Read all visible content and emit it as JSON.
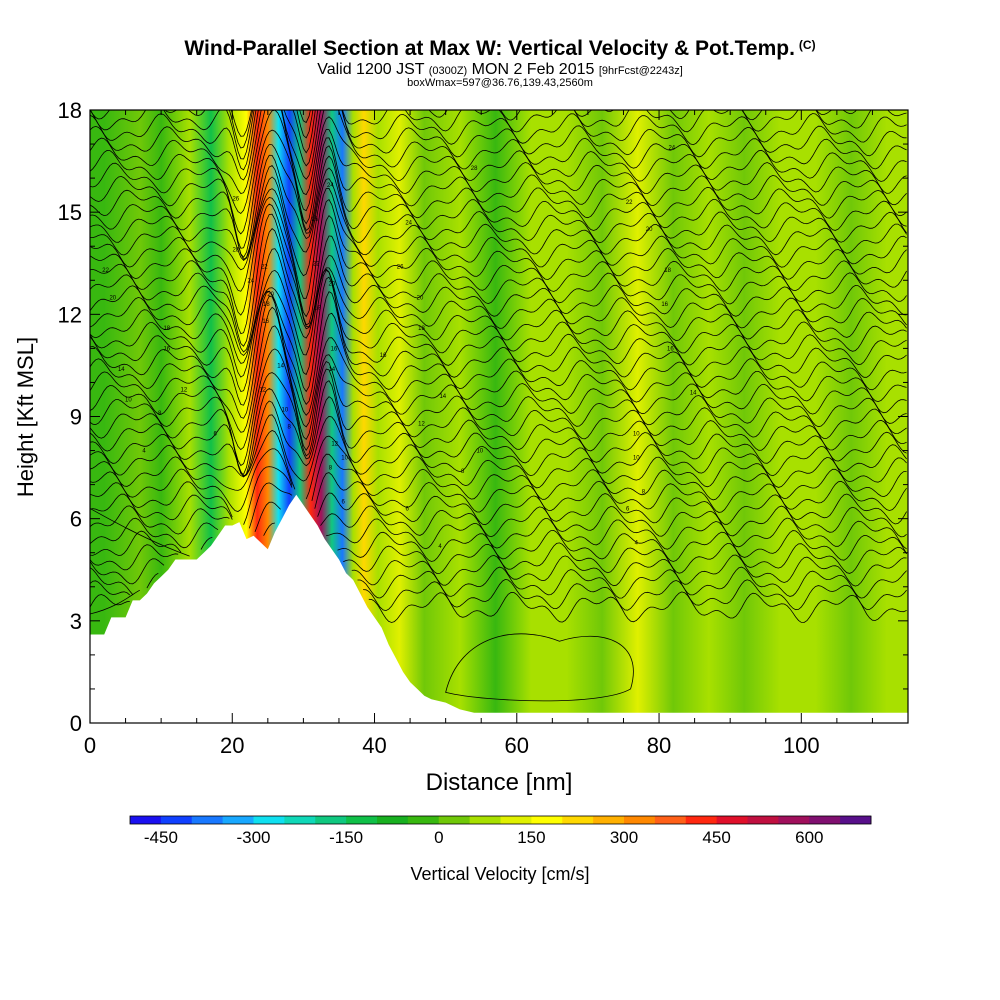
{
  "title": {
    "main": "Wind-Parallel Section at Max W: Vertical Velocity & Pot.Temp.",
    "copyright": "(C)",
    "valid_prefix": "Valid 1200 JST",
    "valid_utc": "(0300Z)",
    "valid_date": "MON 2 Feb 2015",
    "forecast": "[9hrFcst@2243z]",
    "boxwmax": "boxWmax=597@36.76,139.43,2560m"
  },
  "chart_data": {
    "type": "heatmap",
    "xlabel": "Distance [nm]",
    "ylabel": "Height [Kft MSL]",
    "xlim": [
      0,
      115
    ],
    "ylim": [
      0,
      18
    ],
    "x_ticks": [
      0,
      20,
      40,
      60,
      80,
      100
    ],
    "y_ticks": [
      0,
      3,
      6,
      9,
      12,
      15,
      18
    ],
    "terrain_kft": [
      [
        0,
        2.6
      ],
      [
        2,
        2.6
      ],
      [
        3,
        3.1
      ],
      [
        5,
        3.1
      ],
      [
        6,
        3.6
      ],
      [
        7,
        3.6
      ],
      [
        8,
        3.8
      ],
      [
        9,
        4.1
      ],
      [
        10,
        4.3
      ],
      [
        11,
        4.5
      ],
      [
        12,
        4.8
      ],
      [
        15,
        4.8
      ],
      [
        16,
        5.0
      ],
      [
        17,
        5.2
      ],
      [
        18,
        5.5
      ],
      [
        19,
        5.8
      ],
      [
        20,
        5.8
      ],
      [
        21,
        5.9
      ],
      [
        22,
        5.4
      ],
      [
        23,
        5.5
      ],
      [
        24,
        5.3
      ],
      [
        25,
        5.1
      ],
      [
        26,
        5.6
      ],
      [
        27,
        6.0
      ],
      [
        28,
        6.4
      ],
      [
        29,
        6.7
      ],
      [
        30,
        6.4
      ],
      [
        31,
        6.1
      ],
      [
        32,
        5.8
      ],
      [
        33,
        5.4
      ],
      [
        34,
        5.1
      ],
      [
        35,
        4.8
      ],
      [
        36,
        4.4
      ],
      [
        37,
        4.2
      ],
      [
        38,
        3.8
      ],
      [
        39,
        3.4
      ],
      [
        40,
        3.1
      ],
      [
        41,
        2.8
      ],
      [
        42,
        2.3
      ],
      [
        43,
        1.9
      ],
      [
        44,
        1.5
      ],
      [
        45,
        1.2
      ],
      [
        46,
        1.0
      ],
      [
        47,
        0.8
      ],
      [
        48,
        0.7
      ],
      [
        50,
        0.6
      ],
      [
        52,
        0.4
      ],
      [
        54,
        0.3
      ],
      [
        56,
        0.3
      ],
      [
        115,
        0.3
      ]
    ],
    "vertical_velocity_bands_cms": [
      {
        "x": 2,
        "w": -20
      },
      {
        "x": 7,
        "w": 30
      },
      {
        "x": 10,
        "w": -50
      },
      {
        "x": 14,
        "w": 80
      },
      {
        "x": 17,
        "w": -130
      },
      {
        "x": 19.5,
        "w": 60
      },
      {
        "x": 22,
        "w": 170
      },
      {
        "x": 23.5,
        "w": 420
      },
      {
        "x": 25,
        "w": 300
      },
      {
        "x": 26.5,
        "w": -300
      },
      {
        "x": 28,
        "w": -420
      },
      {
        "x": 29.5,
        "w": -180
      },
      {
        "x": 31,
        "w": 420
      },
      {
        "x": 32.5,
        "w": 597
      },
      {
        "x": 34,
        "w": -200
      },
      {
        "x": 35.5,
        "w": -380
      },
      {
        "x": 37,
        "w": 90
      },
      {
        "x": 38.5,
        "w": 200
      },
      {
        "x": 40.5,
        "w": 60
      },
      {
        "x": 43.5,
        "w": 120
      },
      {
        "x": 47,
        "w": 40
      },
      {
        "x": 52,
        "w": 80
      },
      {
        "x": 57,
        "w": -20
      },
      {
        "x": 62,
        "w": 60
      },
      {
        "x": 67,
        "w": 80
      },
      {
        "x": 72,
        "w": 40
      },
      {
        "x": 77,
        "w": 100
      },
      {
        "x": 82,
        "w": 40
      },
      {
        "x": 87,
        "w": 90
      },
      {
        "x": 92,
        "w": 30
      },
      {
        "x": 97,
        "w": 60
      },
      {
        "x": 102,
        "w": 90
      },
      {
        "x": 107,
        "w": 40
      },
      {
        "x": 112,
        "w": 60
      }
    ],
    "potential_temperature_contour_labels": [
      {
        "label": "22",
        "x": 2.2,
        "y": 13.3
      },
      {
        "label": "20",
        "x": 3.2,
        "y": 12.5
      },
      {
        "label": "18",
        "x": 10.8,
        "y": 11.6
      },
      {
        "label": "16",
        "x": 10.8,
        "y": 11.0
      },
      {
        "label": "14",
        "x": 4.4,
        "y": 10.4
      },
      {
        "label": "12",
        "x": 13.2,
        "y": 9.8
      },
      {
        "label": "10",
        "x": 5.4,
        "y": 9.5
      },
      {
        "label": "8",
        "x": 9.8,
        "y": 9.1
      },
      {
        "label": "6",
        "x": 17.6,
        "y": 8.5
      },
      {
        "label": "4",
        "x": 7.6,
        "y": 8.0
      },
      {
        "label": "26",
        "x": 20.5,
        "y": 15.4
      },
      {
        "label": "28",
        "x": 20.5,
        "y": 13.9
      },
      {
        "label": "24",
        "x": 22.6,
        "y": 13.0
      },
      {
        "label": "22",
        "x": 24.5,
        "y": 13.4
      },
      {
        "label": "20",
        "x": 25.4,
        "y": 12.6
      },
      {
        "label": "18",
        "x": 24.8,
        "y": 12.3
      },
      {
        "label": "16",
        "x": 24.7,
        "y": 11.8
      },
      {
        "label": "14",
        "x": 26.8,
        "y": 10.5
      },
      {
        "label": "12",
        "x": 24.3,
        "y": 9.8
      },
      {
        "label": "10",
        "x": 27.4,
        "y": 9.2
      },
      {
        "label": "8",
        "x": 28.0,
        "y": 8.7
      },
      {
        "label": "24",
        "x": 33.8,
        "y": 15.8
      },
      {
        "label": "26",
        "x": 31.6,
        "y": 14.8
      },
      {
        "label": "22",
        "x": 31.8,
        "y": 13.5
      },
      {
        "label": "20",
        "x": 34.0,
        "y": 12.9
      },
      {
        "label": "18",
        "x": 32.0,
        "y": 12.2
      },
      {
        "label": "16",
        "x": 34.3,
        "y": 11.0
      },
      {
        "label": "14",
        "x": 34.0,
        "y": 10.4
      },
      {
        "label": "12",
        "x": 34.4,
        "y": 8.2
      },
      {
        "label": "10",
        "x": 35.8,
        "y": 7.8
      },
      {
        "label": "8",
        "x": 33.8,
        "y": 7.5
      },
      {
        "label": "6",
        "x": 35.6,
        "y": 6.5
      },
      {
        "label": "24",
        "x": 44.8,
        "y": 14.7
      },
      {
        "label": "26",
        "x": 43.6,
        "y": 13.4
      },
      {
        "label": "20",
        "x": 46.4,
        "y": 12.5
      },
      {
        "label": "18",
        "x": 46.6,
        "y": 11.6
      },
      {
        "label": "16",
        "x": 41.2,
        "y": 10.8
      },
      {
        "label": "14",
        "x": 49.6,
        "y": 9.6
      },
      {
        "label": "12",
        "x": 46.6,
        "y": 8.8
      },
      {
        "label": "10",
        "x": 54.8,
        "y": 8.0
      },
      {
        "label": "8",
        "x": 52.4,
        "y": 7.4
      },
      {
        "label": "6",
        "x": 44.6,
        "y": 6.3
      },
      {
        "label": "4",
        "x": 49.2,
        "y": 5.2
      },
      {
        "label": "28",
        "x": 54.0,
        "y": 16.3
      },
      {
        "label": "24",
        "x": 81.8,
        "y": 16.9
      },
      {
        "label": "22",
        "x": 75.8,
        "y": 15.3
      },
      {
        "label": "20",
        "x": 78.6,
        "y": 14.5
      },
      {
        "label": "18",
        "x": 81.2,
        "y": 13.3
      },
      {
        "label": "16",
        "x": 80.8,
        "y": 12.3
      },
      {
        "label": "16",
        "x": 81.6,
        "y": 11.0
      },
      {
        "label": "14",
        "x": 84.8,
        "y": 9.7
      },
      {
        "label": "10",
        "x": 76.8,
        "y": 8.5
      },
      {
        "label": "10",
        "x": 76.8,
        "y": 7.8
      },
      {
        "label": "8",
        "x": 77.8,
        "y": 6.8
      },
      {
        "label": "6",
        "x": 75.6,
        "y": 6.3
      },
      {
        "label": "4",
        "x": 76.8,
        "y": 5.3
      }
    ]
  },
  "colorbar": {
    "label": "Vertical Velocity [cm/s]",
    "tick_values": [
      -450,
      -300,
      -150,
      0,
      150,
      300,
      450,
      600
    ],
    "tick_labels": [
      "-450",
      "-300",
      "-150",
      "0",
      "150",
      "300",
      "450",
      "600"
    ],
    "range": [
      -500,
      700
    ],
    "colors": [
      "#1a10f0",
      "#1040ff",
      "#1878ff",
      "#18a8ff",
      "#10e0f0",
      "#10d8b8",
      "#10c880",
      "#10c048",
      "#18b020",
      "#38b810",
      "#70c808",
      "#a8e000",
      "#e0f000",
      "#ffff00",
      "#ffd800",
      "#ffb000",
      "#ff8800",
      "#ff6018",
      "#ff2810",
      "#e0102a",
      "#c01040",
      "#a0105c",
      "#801070",
      "#58108a"
    ]
  }
}
